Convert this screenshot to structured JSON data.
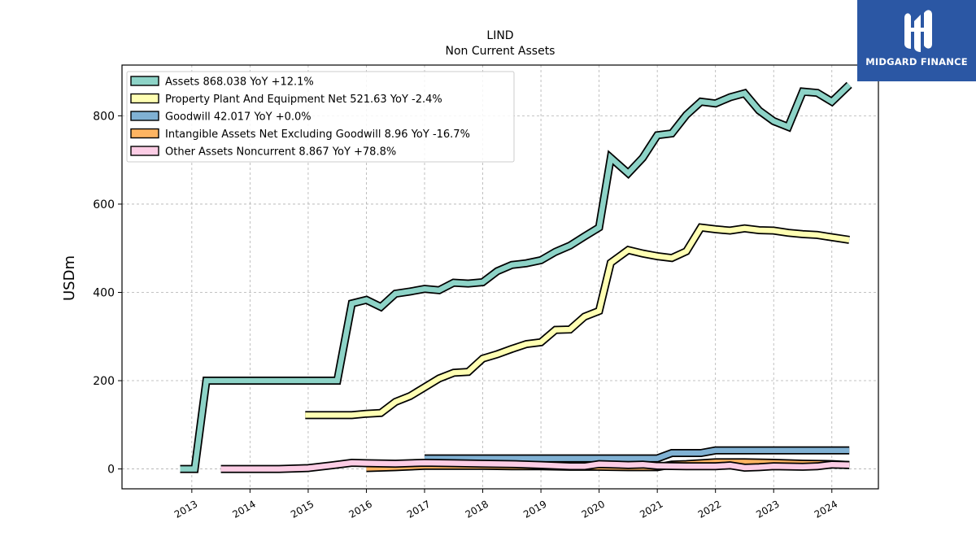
{
  "brand": {
    "name": "MIDGARD FINANCE",
    "bg_color": "#2b57a4"
  },
  "chart_data": {
    "type": "line",
    "title": "LIND",
    "subtitle": "Non Current  Assets",
    "ylabel": "USDm",
    "xlabel": "",
    "ylim": [
      -45,
      915
    ],
    "xlim": [
      2011.8,
      2024.8
    ],
    "yticks": [
      0,
      200,
      400,
      600,
      800
    ],
    "xticks": [
      "2013",
      "2014",
      "2015",
      "2016",
      "2017",
      "2018",
      "2019",
      "2020",
      "2021",
      "2022",
      "2023",
      "2024"
    ],
    "grid": true,
    "legend_position": "top-left",
    "series": [
      {
        "name": "Assets  868.038 YoY +12.1%",
        "color": "#8dd3c7",
        "points": [
          [
            2012.8,
            0
          ],
          [
            2013.05,
            0
          ],
          [
            2013.25,
            200
          ],
          [
            2013.5,
            200
          ],
          [
            2014,
            200
          ],
          [
            2014.5,
            200
          ],
          [
            2015,
            200
          ],
          [
            2015.3,
            200
          ],
          [
            2015.5,
            200
          ],
          [
            2015.75,
            375
          ],
          [
            2016,
            383
          ],
          [
            2016.25,
            367
          ],
          [
            2016.5,
            397
          ],
          [
            2016.75,
            402
          ],
          [
            2017,
            408
          ],
          [
            2017.25,
            405
          ],
          [
            2017.5,
            422
          ],
          [
            2017.75,
            420
          ],
          [
            2018,
            423
          ],
          [
            2018.25,
            448
          ],
          [
            2018.5,
            462
          ],
          [
            2018.75,
            466
          ],
          [
            2019,
            473
          ],
          [
            2019.25,
            492
          ],
          [
            2019.5,
            506
          ],
          [
            2019.75,
            527
          ],
          [
            2020,
            547
          ],
          [
            2020.2,
            705
          ],
          [
            2020.5,
            670
          ],
          [
            2020.75,
            705
          ],
          [
            2021,
            756
          ],
          [
            2021.25,
            760
          ],
          [
            2021.5,
            802
          ],
          [
            2021.75,
            832
          ],
          [
            2022,
            828
          ],
          [
            2022.25,
            842
          ],
          [
            2022.5,
            851
          ],
          [
            2022.75,
            812
          ],
          [
            2023,
            788
          ],
          [
            2023.25,
            775
          ],
          [
            2023.5,
            855
          ],
          [
            2023.75,
            852
          ],
          [
            2024,
            832
          ],
          [
            2024.3,
            870
          ]
        ]
      },
      {
        "name": "Property Plant And Equipment Net  521.63 YoY -2.4%",
        "color": "#ffffb3",
        "points": [
          [
            2014.95,
            122
          ],
          [
            2015.5,
            122
          ],
          [
            2015.75,
            122
          ],
          [
            2016,
            125
          ],
          [
            2016.25,
            127
          ],
          [
            2016.5,
            152
          ],
          [
            2016.75,
            165
          ],
          [
            2017,
            185
          ],
          [
            2017.25,
            205
          ],
          [
            2017.5,
            218
          ],
          [
            2017.75,
            220
          ],
          [
            2018,
            250
          ],
          [
            2018.25,
            260
          ],
          [
            2018.5,
            272
          ],
          [
            2018.75,
            283
          ],
          [
            2019,
            287
          ],
          [
            2019.25,
            315
          ],
          [
            2019.5,
            316
          ],
          [
            2019.75,
            345
          ],
          [
            2020,
            358
          ],
          [
            2020.2,
            467
          ],
          [
            2020.5,
            496
          ],
          [
            2020.75,
            488
          ],
          [
            2021,
            482
          ],
          [
            2021.25,
            478
          ],
          [
            2021.5,
            493
          ],
          [
            2021.75,
            547
          ],
          [
            2022,
            543
          ],
          [
            2022.25,
            540
          ],
          [
            2022.5,
            545
          ],
          [
            2022.75,
            541
          ],
          [
            2023,
            540
          ],
          [
            2023.25,
            535
          ],
          [
            2023.5,
            532
          ],
          [
            2023.75,
            530
          ],
          [
            2024,
            525
          ],
          [
            2024.3,
            519
          ]
        ]
      },
      {
        "name": "Goodwill  42.017 YoY +0.0%",
        "color": "#80b1d3",
        "points": [
          [
            2017,
            24
          ],
          [
            2017.5,
            24
          ],
          [
            2018,
            24
          ],
          [
            2018.5,
            24
          ],
          [
            2019,
            24
          ],
          [
            2019.5,
            24
          ],
          [
            2020,
            24
          ],
          [
            2020.5,
            24
          ],
          [
            2021,
            24
          ],
          [
            2021.25,
            36
          ],
          [
            2021.5,
            36
          ],
          [
            2021.75,
            36
          ],
          [
            2022,
            42
          ],
          [
            2022.5,
            42
          ],
          [
            2023,
            42
          ],
          [
            2023.5,
            42
          ],
          [
            2024,
            42
          ],
          [
            2024.3,
            42
          ]
        ]
      },
      {
        "name": "Intangible Assets Net Excluding Goodwill  8.96 YoY -16.7%",
        "color": "#fdb462",
        "points": [
          [
            2016,
            2
          ],
          [
            2016.5,
            4
          ],
          [
            2017,
            7
          ],
          [
            2017.5,
            7
          ],
          [
            2018,
            7
          ],
          [
            2018.5,
            6
          ],
          [
            2019,
            6
          ],
          [
            2019.5,
            5
          ],
          [
            2020,
            5
          ],
          [
            2020.5,
            4
          ],
          [
            2021,
            4
          ],
          [
            2021.25,
            10
          ],
          [
            2021.5,
            11
          ],
          [
            2021.75,
            13
          ],
          [
            2022,
            15
          ],
          [
            2022.5,
            15
          ],
          [
            2023,
            14
          ],
          [
            2023.5,
            12
          ],
          [
            2024,
            11
          ],
          [
            2024.3,
            9
          ]
        ]
      },
      {
        "name": "Other Assets Noncurrent  8.867 YoY +78.8%",
        "color": "#fccde5",
        "points": [
          [
            2013.5,
            0
          ],
          [
            2014,
            0
          ],
          [
            2014.5,
            0
          ],
          [
            2015,
            2
          ],
          [
            2015.4,
            8
          ],
          [
            2015.75,
            14
          ],
          [
            2016,
            13
          ],
          [
            2016.5,
            12
          ],
          [
            2017,
            14
          ],
          [
            2017.5,
            13
          ],
          [
            2018,
            12
          ],
          [
            2018.5,
            11
          ],
          [
            2019,
            9
          ],
          [
            2019.5,
            6
          ],
          [
            2019.75,
            6
          ],
          [
            2020,
            11
          ],
          [
            2020.5,
            9
          ],
          [
            2020.75,
            10
          ],
          [
            2021,
            7
          ],
          [
            2021.5,
            6
          ],
          [
            2022,
            6
          ],
          [
            2022.25,
            8
          ],
          [
            2022.5,
            3
          ],
          [
            2022.75,
            4
          ],
          [
            2023,
            6
          ],
          [
            2023.5,
            5
          ],
          [
            2023.75,
            6
          ],
          [
            2024,
            10
          ],
          [
            2024.3,
            9
          ]
        ]
      }
    ]
  }
}
